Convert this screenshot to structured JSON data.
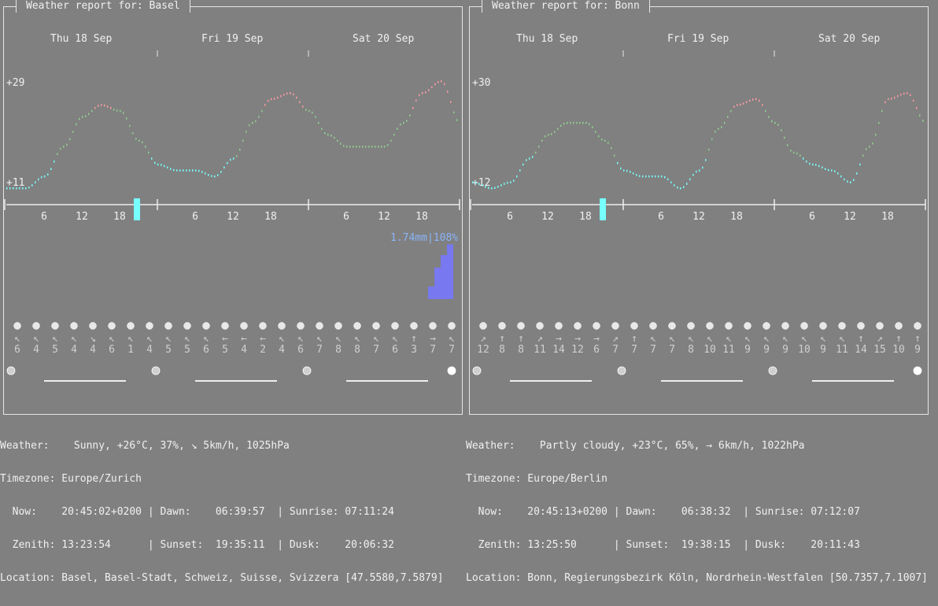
{
  "panels": [
    {
      "title": "Weather report for: Basel",
      "days": [
        "Thu 18 Sep",
        "Fri 19 Sep",
        "Sat 20 Sep"
      ],
      "y_max": "+29",
      "y_min": "+11",
      "hour_labels": [
        "6",
        "12",
        "18",
        "6",
        "12",
        "18",
        "6",
        "12",
        "18"
      ],
      "rain_label": "1.74mm|108%",
      "wind": [
        "6",
        "4",
        "5",
        "4",
        "4",
        "6",
        "1",
        "4",
        "5",
        "5",
        "6",
        "5",
        "4",
        "2",
        "4",
        "6",
        "7",
        "8",
        "8",
        "7",
        "6",
        "3",
        "7",
        "7"
      ],
      "current": {
        "line1": "Weather:    Sunny, +26°C, 37%, ↘ 5km/h, 1025hPa",
        "line2": "Timezone: Europe/Zurich",
        "line3": "  Now:    20:45:02+0200 | Dawn:    06:39:57  | Sunrise: 07:11:24",
        "line4": "  Zenith: 13:23:54      | Sunset:  19:35:11  | Dusk:    20:06:32",
        "line5": "Location: Basel, Basel-Stadt, Schweiz, Suisse, Svizzera [47.5580,7.5879]"
      }
    },
    {
      "title": "Weather report for: Bonn",
      "days": [
        "Thu 18 Sep",
        "Fri 19 Sep",
        "Sat 20 Sep"
      ],
      "y_max": "+30",
      "y_min": "+12",
      "hour_labels": [
        "6",
        "12",
        "18",
        "6",
        "12",
        "18",
        "6",
        "12",
        "18"
      ],
      "rain_label": "",
      "wind": [
        "12",
        "8",
        "8",
        "11",
        "14",
        "12",
        "6",
        "7",
        "7",
        "7",
        "7",
        "8",
        "10",
        "11",
        "9",
        "9",
        "9",
        "10",
        "9",
        "11",
        "14",
        "15",
        "10",
        "9"
      ],
      "current": {
        "line1": "Weather:    Partly cloudy, +23°C, 65%, → 6km/h, 1022hPa",
        "line2": "Timezone: Europe/Berlin",
        "line3": "  Now:    20:45:13+0200 | Dawn:    06:38:32  | Sunrise: 07:12:07",
        "line4": "  Zenith: 13:25:50      | Sunset:  19:38:15  | Dusk:    20:11:43",
        "line5": "Location: Bonn, Regierungsbezirk Köln, Nordrhein-Westfalen [50.7357,7.1007]"
      }
    }
  ],
  "chart_data": [
    {
      "type": "line",
      "title": "Weather report for: Basel",
      "x_unit": "hours from Thu 18 Sep 00:00",
      "x": [
        0,
        3,
        6,
        9,
        12,
        15,
        18,
        21,
        24,
        27,
        30,
        33,
        36,
        39,
        42,
        45,
        48,
        51,
        54,
        57,
        60,
        63,
        66,
        69,
        72
      ],
      "y": [
        11,
        11,
        13,
        18,
        23,
        25,
        24,
        19,
        15,
        14,
        14,
        13,
        16,
        22,
        26,
        27,
        24,
        20,
        18,
        18,
        18,
        22,
        27,
        29,
        22
      ],
      "ylim": [
        11,
        29
      ]
    },
    {
      "type": "line",
      "title": "Weather report for: Bonn",
      "x_unit": "hours from Thu 18 Sep 00:00",
      "x": [
        0,
        3,
        6,
        9,
        12,
        15,
        18,
        21,
        24,
        27,
        30,
        33,
        36,
        39,
        42,
        45,
        48,
        51,
        54,
        57,
        60,
        63,
        66,
        69,
        72
      ],
      "y": [
        13,
        12,
        13,
        17,
        21,
        23,
        23,
        20,
        15,
        14,
        14,
        12,
        15,
        22,
        26,
        27,
        23,
        18,
        16,
        15,
        13,
        19,
        27,
        28,
        23
      ],
      "ylim": [
        12,
        30
      ]
    },
    {
      "type": "bar",
      "title": "Basel precipitation",
      "peak_label": "1.74mm|108%",
      "x_unit": "hours from Sat 20 Sep 00:00",
      "x": [
        19,
        20,
        21,
        22
      ],
      "values": [
        0.4,
        1.0,
        1.4,
        1.74
      ]
    }
  ]
}
